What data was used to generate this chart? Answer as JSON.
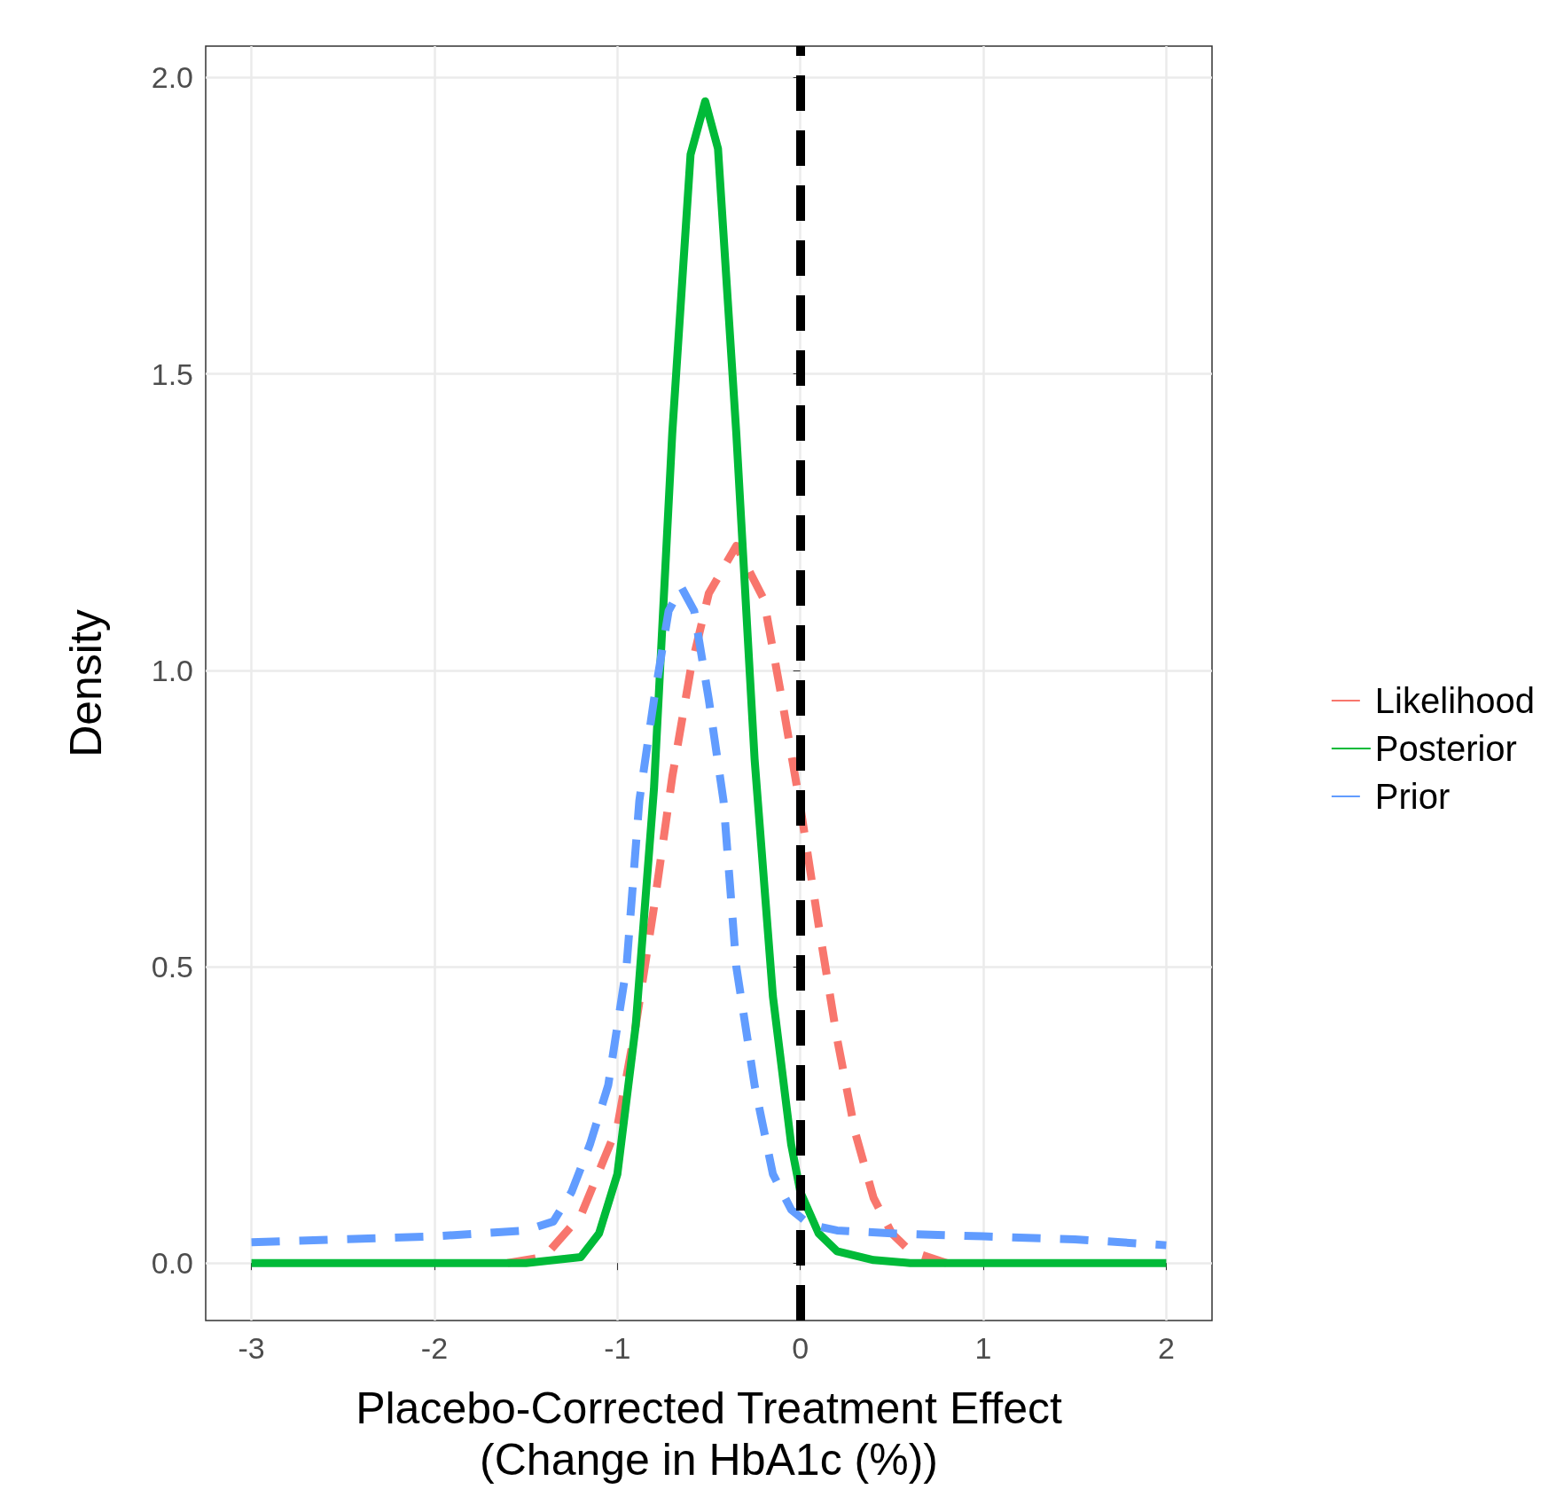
{
  "chart_data": {
    "type": "line",
    "xlabel": "Placebo-Corrected Treatment Effect\n(Change in HbA1c (%))",
    "ylabel": "Density",
    "xlim": [
      -3.25,
      2.25
    ],
    "xticks": [
      -3,
      -2,
      -1,
      0,
      1,
      2
    ],
    "ylim": [
      -0.097,
      2.053
    ],
    "yticks": [
      {
        "value": 0,
        "label": "0.0"
      },
      0.5,
      {
        "value": 1,
        "label": "1.0"
      },
      1.5,
      {
        "value": 2,
        "label": "2.0"
      }
    ],
    "grid": true,
    "legend": "right",
    "marker": "none",
    "ref_lines": [
      {
        "axis": "x",
        "value": 0,
        "color": "#000000",
        "line_style": "dashed"
      }
    ],
    "series": [
      {
        "name": "Likelihood",
        "color": "#f8766d",
        "line_style": "dashed",
        "x": [
          -1.6,
          -1.4,
          -1.2,
          -1.0,
          -0.9,
          -0.8,
          -0.7,
          -0.6,
          -0.5,
          -0.35,
          -0.2,
          -0.1,
          0,
          0.1,
          0.2,
          0.3,
          0.4,
          0.5,
          0.6,
          0.8
        ],
        "values": [
          0,
          0.01,
          0.08,
          0.23,
          0.4,
          0.6,
          0.82,
          1.0,
          1.13,
          1.21,
          1.12,
          0.95,
          0.77,
          0.57,
          0.38,
          0.22,
          0.11,
          0.05,
          0.02,
          0
        ]
      },
      {
        "name": "Posterior",
        "color": "#00ba38",
        "line_style": "solid",
        "x": [
          -3,
          -1.5,
          -1.2,
          -1.1,
          -1.0,
          -0.9,
          -0.8,
          -0.7,
          -0.6,
          -0.52,
          -0.45,
          -0.35,
          -0.25,
          -0.15,
          -0.05,
          0,
          0.1,
          0.2,
          0.4,
          0.6,
          2
        ],
        "values": [
          0,
          0,
          0.01,
          0.05,
          0.15,
          0.4,
          0.8,
          1.4,
          1.87,
          1.96,
          1.88,
          1.4,
          0.85,
          0.45,
          0.2,
          0.12,
          0.05,
          0.02,
          0.005,
          0,
          0
        ]
      },
      {
        "name": "Prior",
        "color": "#619cff",
        "line_style": "dashed",
        "x": [
          -3,
          -2.5,
          -2,
          -1.5,
          -1.35,
          -1.25,
          -1.15,
          -1.05,
          -0.95,
          -0.88,
          -0.8,
          -0.72,
          -0.65,
          -0.58,
          -0.5,
          -0.42,
          -0.35,
          -0.25,
          -0.15,
          -0.05,
          0.05,
          0.2,
          0.5,
          1,
          1.5,
          2
        ],
        "values": [
          0.035,
          0.04,
          0.045,
          0.055,
          0.07,
          0.12,
          0.2,
          0.3,
          0.5,
          0.78,
          0.95,
          1.1,
          1.14,
          1.1,
          0.95,
          0.78,
          0.5,
          0.3,
          0.15,
          0.09,
          0.065,
          0.055,
          0.05,
          0.045,
          0.04,
          0.03
        ]
      }
    ]
  }
}
